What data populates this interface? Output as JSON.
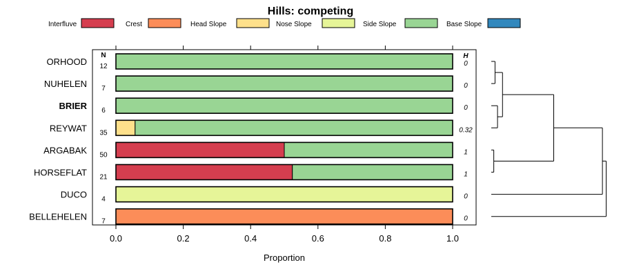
{
  "chart_data": {
    "type": "bar",
    "orientation": "horizontal",
    "stacked": true,
    "title": "Hills: competing",
    "xlabel": "Proportion",
    "ylabel": "",
    "xlim": [
      0,
      1
    ],
    "xticks": [
      "0.0",
      "0.2",
      "0.4",
      "0.6",
      "0.8",
      "1.0"
    ],
    "n_header": "N",
    "h_header": "H",
    "legend": [
      {
        "name": "Interfluve",
        "color": "#D53E4F"
      },
      {
        "name": "Crest",
        "color": "#FC8D59"
      },
      {
        "name": "Head Slope",
        "color": "#FEE08B"
      },
      {
        "name": "Nose Slope",
        "color": "#E6F598"
      },
      {
        "name": "Side Slope",
        "color": "#99D594"
      },
      {
        "name": "Base Slope",
        "color": "#3288BD"
      }
    ],
    "categories": [
      "ORHOOD",
      "NUHELEN",
      "BRIER",
      "REYWAT",
      "ARGABAK",
      "HORSEFLAT",
      "DUCO",
      "BELLEHELEN"
    ],
    "highlighted": "BRIER",
    "n": [
      "12",
      "7",
      "6",
      "35",
      "50",
      "21",
      "4",
      "7"
    ],
    "h": [
      "0",
      "0",
      "0",
      "0.32",
      "1",
      "1",
      "0",
      "0"
    ],
    "series": [
      {
        "name": "Interfluve",
        "values": [
          0,
          0,
          0,
          0,
          0.5,
          0.524,
          0,
          0
        ]
      },
      {
        "name": "Crest",
        "values": [
          0,
          0,
          0,
          0,
          0,
          0,
          0,
          1
        ]
      },
      {
        "name": "Head Slope",
        "values": [
          0,
          0,
          0,
          0.057,
          0,
          0,
          0,
          0
        ]
      },
      {
        "name": "Nose Slope",
        "values": [
          0,
          0,
          0,
          0,
          0,
          0,
          1,
          0
        ]
      },
      {
        "name": "Side Slope",
        "values": [
          1,
          1,
          1,
          0.943,
          0.5,
          0.476,
          0,
          0
        ]
      },
      {
        "name": "Base Slope",
        "values": [
          0,
          0,
          0,
          0,
          0,
          0,
          0,
          0
        ]
      }
    ],
    "dendrogram": {
      "merges": [
        {
          "left": "ORHOOD",
          "right": "NUHELEN",
          "height": 0.03
        },
        {
          "left": "BRIER",
          "right": "REYWAT",
          "height": 0.05
        },
        {
          "left": "ORHOOD+NUHELEN",
          "right": "BRIER+REYWAT",
          "height": 0.09
        },
        {
          "left": "ARGABAK",
          "right": "HORSEFLAT",
          "height": 0.02
        },
        {
          "left": "ORHOOD+NUHELEN+BRIER+REYWAT",
          "right": "ARGABAK+HORSEFLAT",
          "height": 0.5
        },
        {
          "left": "ALL6",
          "right": "DUCO",
          "height": 0.89
        },
        {
          "left": "ALL7",
          "right": "BELLEHELEN",
          "height": 0.92
        }
      ]
    }
  }
}
